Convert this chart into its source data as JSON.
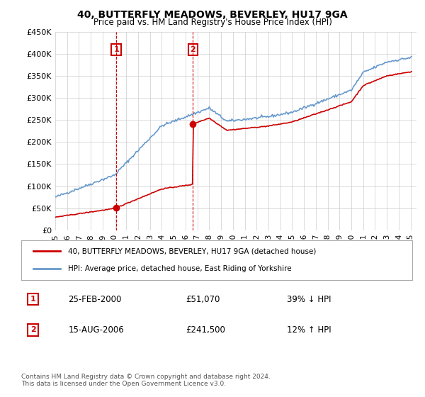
{
  "title": "40, BUTTERFLY MEADOWS, BEVERLEY, HU17 9GA",
  "subtitle": "Price paid vs. HM Land Registry's House Price Index (HPI)",
  "ylabel": "",
  "legend_line1": "40, BUTTERFLY MEADOWS, BEVERLEY, HU17 9GA (detached house)",
  "legend_line2": "HPI: Average price, detached house, East Riding of Yorkshire",
  "footnote": "Contains HM Land Registry data © Crown copyright and database right 2024.\nThis data is licensed under the Open Government Licence v3.0.",
  "transactions": [
    {
      "label": "1",
      "date": "25-FEB-2000",
      "price_str": "£51,070",
      "hpi_str": "39% ↓ HPI",
      "year": 2000.15,
      "price": 51070
    },
    {
      "label": "2",
      "date": "15-AUG-2006",
      "price_str": "£241,500",
      "hpi_str": "12% ↑ HPI",
      "year": 2006.62,
      "price": 241500
    }
  ],
  "ylim": [
    0,
    450000
  ],
  "yticks": [
    0,
    50000,
    100000,
    150000,
    200000,
    250000,
    300000,
    350000,
    400000,
    450000
  ],
  "ytick_labels": [
    "£0",
    "£50K",
    "£100K",
    "£150K",
    "£200K",
    "£250K",
    "£300K",
    "£350K",
    "£400K",
    "£450K"
  ],
  "xlim_start": 1995.0,
  "xlim_end": 2025.5,
  "property_color": "#cc0000",
  "hpi_color": "#6699cc",
  "dashed_color": "#cc0000",
  "grid_color": "#cccccc",
  "box_color": "#cc0000",
  "background_color": "#ffffff"
}
